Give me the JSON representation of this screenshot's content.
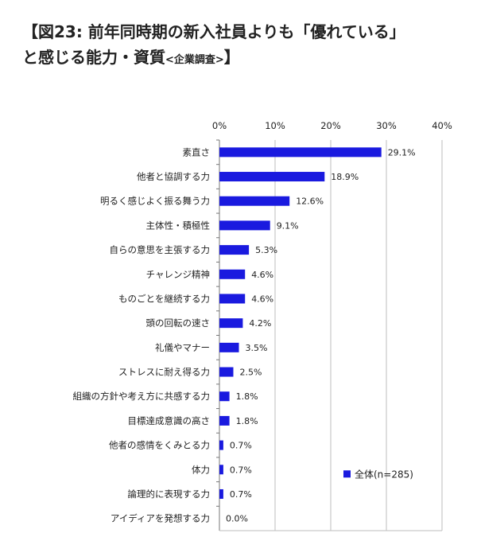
{
  "title": {
    "line1": "【図23:  前年同時期の新入社員よりも「優れている」",
    "line2_main": "と感じる能力・資質",
    "line2_sub": "<企業調査>",
    "line2_end": "】"
  },
  "colors": {
    "bar": "#1a1adf",
    "grid": "#bdbdbd",
    "axis": "#777777"
  },
  "chart_data": {
    "type": "bar",
    "orientation": "horizontal",
    "categories": [
      "素直さ",
      "他者と協調する力",
      "明るく感じよく振る舞う力",
      "主体性・積極性",
      "自らの意思を主張する力",
      "チャレンジ精神",
      "ものごとを継続する力",
      "頭の回転の速さ",
      "礼儀やマナー",
      "ストレスに耐え得る力",
      "組織の方針や考え方に共感する力",
      "目標達成意識の高さ",
      "他者の感情をくみとる力",
      "体力",
      "論理的に表現する力",
      "アイディアを発想する力"
    ],
    "series": [
      {
        "name": "全体(n=285)",
        "values": [
          29.1,
          18.9,
          12.6,
          9.1,
          5.3,
          4.6,
          4.6,
          4.2,
          3.5,
          2.5,
          1.8,
          1.8,
          0.7,
          0.7,
          0.7,
          0.0
        ]
      }
    ],
    "value_labels": [
      "29.1%",
      "18.9%",
      "12.6%",
      "9.1%",
      "5.3%",
      "4.6%",
      "4.6%",
      "4.2%",
      "3.5%",
      "2.5%",
      "1.8%",
      "1.8%",
      "0.7%",
      "0.7%",
      "0.7%",
      "0.0%"
    ],
    "xlim": [
      0,
      40
    ],
    "xticks": [
      0,
      10,
      20,
      30,
      40
    ],
    "xtick_labels": [
      "0%",
      "10%",
      "20%",
      "30%",
      "40%"
    ],
    "grid": true,
    "legend_position": "bottom-right"
  }
}
